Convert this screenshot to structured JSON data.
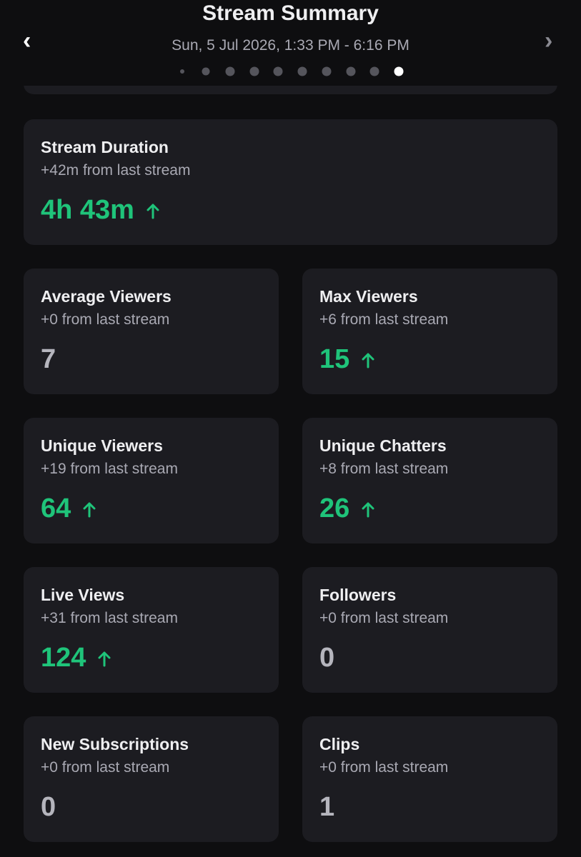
{
  "header": {
    "title": "Stream Summary",
    "date_range": "Sun, 5 Jul 2026, 1:33 PM - 6:16 PM"
  },
  "cards": [
    {
      "title": "Stream Duration",
      "change": "+42m from last stream",
      "value": "4h 43m",
      "increased": true,
      "wide": true
    },
    {
      "title": "Average Viewers",
      "change": "+0 from last stream",
      "value": 7,
      "increased": false
    },
    {
      "title": "Max Viewers",
      "change": "+6 from last stream",
      "value": 15,
      "increased": true
    },
    {
      "title": "Unique Viewers",
      "change": "+19 from last stream",
      "value": 64,
      "increased": true
    },
    {
      "title": "Unique Chatters",
      "change": "+8 from last stream",
      "value": 26,
      "increased": true
    },
    {
      "title": "Live Views",
      "change": "+31 from last stream",
      "value": 124,
      "increased": true
    },
    {
      "title": "Followers",
      "change": "+0 from last stream",
      "value": 0,
      "increased": false
    },
    {
      "title": "New Subscriptions",
      "change": "+0 from last stream",
      "value": 0,
      "increased": false
    },
    {
      "title": "Clips",
      "change": "+0 from last stream",
      "value": 1,
      "increased": false
    }
  ]
}
